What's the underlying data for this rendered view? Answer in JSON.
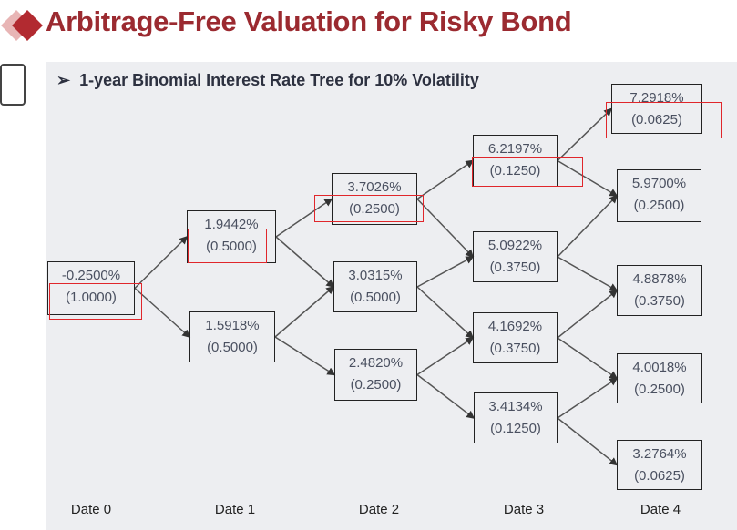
{
  "title": "Arbitrage-Free Valuation for Risky Bond",
  "subtitle": "1-year Binomial Interest Rate Tree for 10% Volatility",
  "subtitle_bullet": "➢",
  "colors": {
    "title": "#9b2a30",
    "highlight": "#e0262b",
    "panel": "#edeef1"
  },
  "dates": [
    "Date 0",
    "Date 1",
    "Date 2",
    "Date 3",
    "Date 4"
  ],
  "nodes": [
    {
      "rate": "-0.2500%",
      "prob": "(1.0000)"
    },
    {
      "rate": "1.9442%",
      "prob": "(0.5000)"
    },
    {
      "rate": "1.5918%",
      "prob": "(0.5000)"
    },
    {
      "rate": "3.7026%",
      "prob": "(0.2500)"
    },
    {
      "rate": "3.0315%",
      "prob": "(0.5000)"
    },
    {
      "rate": "2.4820%",
      "prob": "(0.2500)"
    },
    {
      "rate": "6.2197%",
      "prob": "(0.1250)"
    },
    {
      "rate": "5.0922%",
      "prob": "(0.3750)"
    },
    {
      "rate": "4.1692%",
      "prob": "(0.3750)"
    },
    {
      "rate": "3.4134%",
      "prob": "(0.1250)"
    },
    {
      "rate": "7.2918%",
      "prob": "(0.0625)"
    },
    {
      "rate": "5.9700%",
      "prob": "(0.2500)"
    },
    {
      "rate": "4.8878%",
      "prob": "(0.3750)"
    },
    {
      "rate": "4.0018%",
      "prob": "(0.2500)"
    },
    {
      "rate": "3.2764%",
      "prob": "(0.0625)"
    }
  ]
}
